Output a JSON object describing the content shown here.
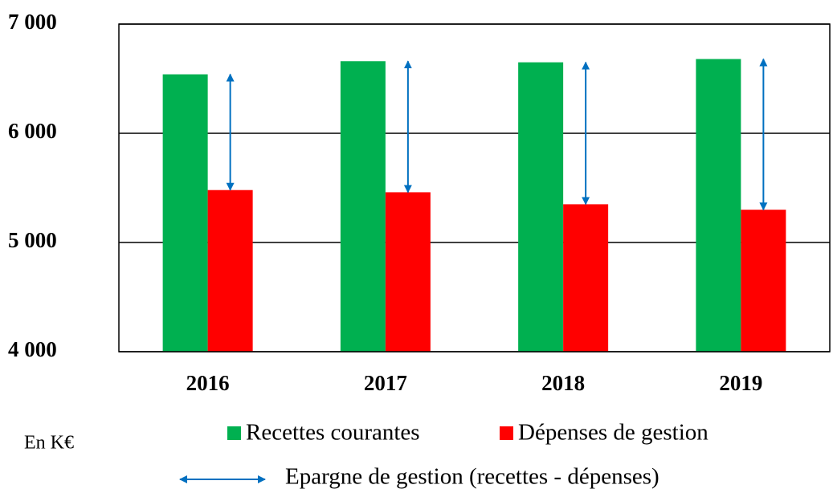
{
  "chart_data": {
    "type": "bar",
    "categories": [
      "2016",
      "2017",
      "2018",
      "2019"
    ],
    "series": [
      {
        "name": "Recettes courantes",
        "color": "#00b050",
        "values": [
          6540,
          6660,
          6650,
          6680
        ]
      },
      {
        "name": "Dépenses de gestion",
        "color": "#ff0000",
        "values": [
          5480,
          5460,
          5350,
          5300
        ]
      }
    ],
    "arrow_legend": "Epargne de gestion (recettes - dépenses)",
    "arrow_color": "#0070c0",
    "unit_label": "En K€",
    "ylim": [
      4000,
      7000
    ],
    "yticks": [
      {
        "value": 4000,
        "label": "4 000"
      },
      {
        "value": 5000,
        "label": "5 000"
      },
      {
        "value": 6000,
        "label": "6 000"
      },
      {
        "value": 7000,
        "label": "7 000"
      }
    ],
    "grid": true
  }
}
